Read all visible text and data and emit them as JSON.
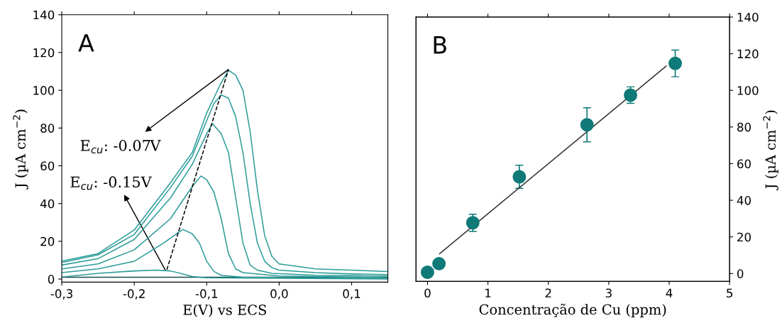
{
  "chart_data": [
    {
      "type": "line",
      "xlabel": "E(V) vs ECS",
      "ylabel": "J (µA cm$^{−2}$)",
      "xlim": [
        -0.3,
        0.15
      ],
      "xticks": [
        {
          "value": -0.3,
          "label": "-0,3"
        },
        {
          "value": -0.2,
          "label": "-0,2"
        },
        {
          "value": -0.1,
          "label": "-0,1"
        },
        {
          "value": 0.0,
          "label": "0,0"
        },
        {
          "value": 0.1,
          "label": "0,1"
        }
      ],
      "ylim": [
        -1.6,
        140
      ],
      "yticks": [
        0,
        20,
        40,
        60,
        80,
        100,
        120,
        140
      ],
      "grid": false,
      "line_style": "solid",
      "series": [
        {
          "color": "#1a4a4a",
          "x": [
            -0.3,
            0.15
          ],
          "values": [
            1,
            1
          ]
        },
        {
          "color": "#2a9c98",
          "x": [
            -0.3,
            -0.25,
            -0.2,
            -0.17,
            -0.15,
            -0.13,
            -0.12,
            -0.1,
            0.15
          ],
          "values": [
            1.1,
            3,
            4.3,
            4.7,
            4.3,
            2.4,
            1.3,
            0.7,
            0
          ]
        },
        {
          "color": "#2a9c98",
          "x": [
            -0.3,
            -0.25,
            -0.2,
            -0.16,
            -0.133,
            -0.12,
            -0.11,
            -0.1,
            -0.09,
            -0.08,
            -0.05,
            0.15
          ],
          "values": [
            3.4,
            5.4,
            9.4,
            19,
            26.3,
            24,
            19,
            9.4,
            4,
            2,
            1,
            0.3
          ]
        },
        {
          "color": "#2a9c98",
          "x": [
            -0.3,
            -0.25,
            -0.2,
            -0.15,
            -0.12,
            -0.108,
            -0.1,
            -0.09,
            -0.08,
            -0.07,
            -0.06,
            -0.05,
            0,
            0.15
          ],
          "values": [
            5.4,
            8,
            15.5,
            32,
            49,
            54.6,
            52.6,
            46,
            32,
            13.5,
            5.4,
            3.4,
            1.6,
            0.7
          ]
        },
        {
          "color": "#2a9c98",
          "x": [
            -0.3,
            -0.25,
            -0.2,
            -0.15,
            -0.12,
            -0.1,
            -0.092,
            -0.08,
            -0.07,
            -0.06,
            -0.05,
            -0.04,
            -0.03,
            -0.01,
            0.05,
            0.15
          ],
          "values": [
            7.4,
            10.8,
            21,
            43,
            60.7,
            77,
            82.3,
            77,
            67,
            43,
            19,
            7.4,
            4.7,
            3,
            2,
            1.6
          ]
        },
        {
          "color": "#2a9c98",
          "x": [
            -0.3,
            -0.25,
            -0.2,
            -0.15,
            -0.12,
            -0.1,
            -0.09,
            -0.08,
            -0.07,
            -0.06,
            -0.05,
            -0.04,
            -0.03,
            -0.02,
            -0.01,
            0,
            0.05,
            0.1,
            0.15
          ],
          "values": [
            8.8,
            12.8,
            23.6,
            48.5,
            65,
            84,
            93,
            97.5,
            95.8,
            86,
            67,
            40,
            19,
            9.4,
            6,
            4.7,
            3.4,
            2.7,
            2.4
          ]
        },
        {
          "color": "#2a9c98",
          "x": [
            -0.3,
            -0.25,
            -0.2,
            -0.15,
            -0.12,
            -0.1,
            -0.08,
            -0.07,
            -0.06,
            -0.05,
            -0.04,
            -0.03,
            -0.02,
            -0.01,
            0,
            0.05,
            0.1,
            0.15
          ],
          "values": [
            9.5,
            13.5,
            26,
            51,
            67,
            88,
            104,
            110.6,
            108,
            100,
            78,
            47,
            23,
            12,
            8,
            5.4,
            4.7,
            4
          ]
        },
        {
          "color": "#000000",
          "line_style": "dashed",
          "x": [
            -0.155,
            -0.07
          ],
          "values": [
            5,
            111
          ]
        }
      ],
      "annotations": [
        "A",
        {
          "text": "E$_{cu}$: -0.07V",
          "x": -0.07,
          "y": 111
        },
        {
          "text": "E$_{cu}$: -0.15V",
          "x": -0.157,
          "y": 4.7
        }
      ]
    },
    {
      "type": "scatter",
      "xlabel": "Concentração de Cu (ppm)",
      "y2label": "J (µA cm$^{−2}$)",
      "xlim": [
        -0.19,
        5
      ],
      "xticks": [
        0,
        1,
        2,
        3,
        4,
        5
      ],
      "y2lim": [
        -4.3,
        140
      ],
      "y2ticks": [
        0,
        20,
        40,
        60,
        80,
        100,
        120,
        140
      ],
      "grid": false,
      "series": [
        {
          "color": "#0f7a78",
          "axis": "y2",
          "marker": "circle",
          "x": [
            0,
            0.19,
            0.75,
            1.52,
            2.64,
            3.36,
            4.1
          ],
          "values": [
            0.7,
            5.4,
            27.7,
            52.8,
            81.2,
            97.4,
            114.7
          ],
          "errors": [
            null,
            null,
            4.7,
            6.3,
            9.3,
            4.5,
            7.3
          ]
        },
        {
          "type": "line",
          "color": "#333333",
          "axis": "y2",
          "x": [
            0.2,
            3.95
          ],
          "values": [
            10.8,
            113.2
          ]
        }
      ],
      "annotations": [
        "B"
      ]
    }
  ]
}
